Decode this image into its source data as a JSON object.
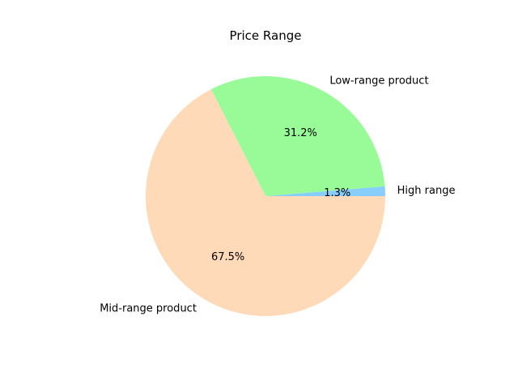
{
  "chart_data": {
    "type": "pie",
    "title": "Price Range",
    "categories": [
      "High range",
      "Low-range product",
      "Mid-range product"
    ],
    "values": [
      1.3,
      31.2,
      67.5
    ],
    "percent_labels": [
      "1.3%",
      "31.2%",
      "67.5%"
    ],
    "colors": [
      "#87cefa",
      "#98fb98",
      "#ffdab9"
    ],
    "start_angle_deg": 0,
    "direction": "counterclockwise",
    "legend": "none"
  }
}
